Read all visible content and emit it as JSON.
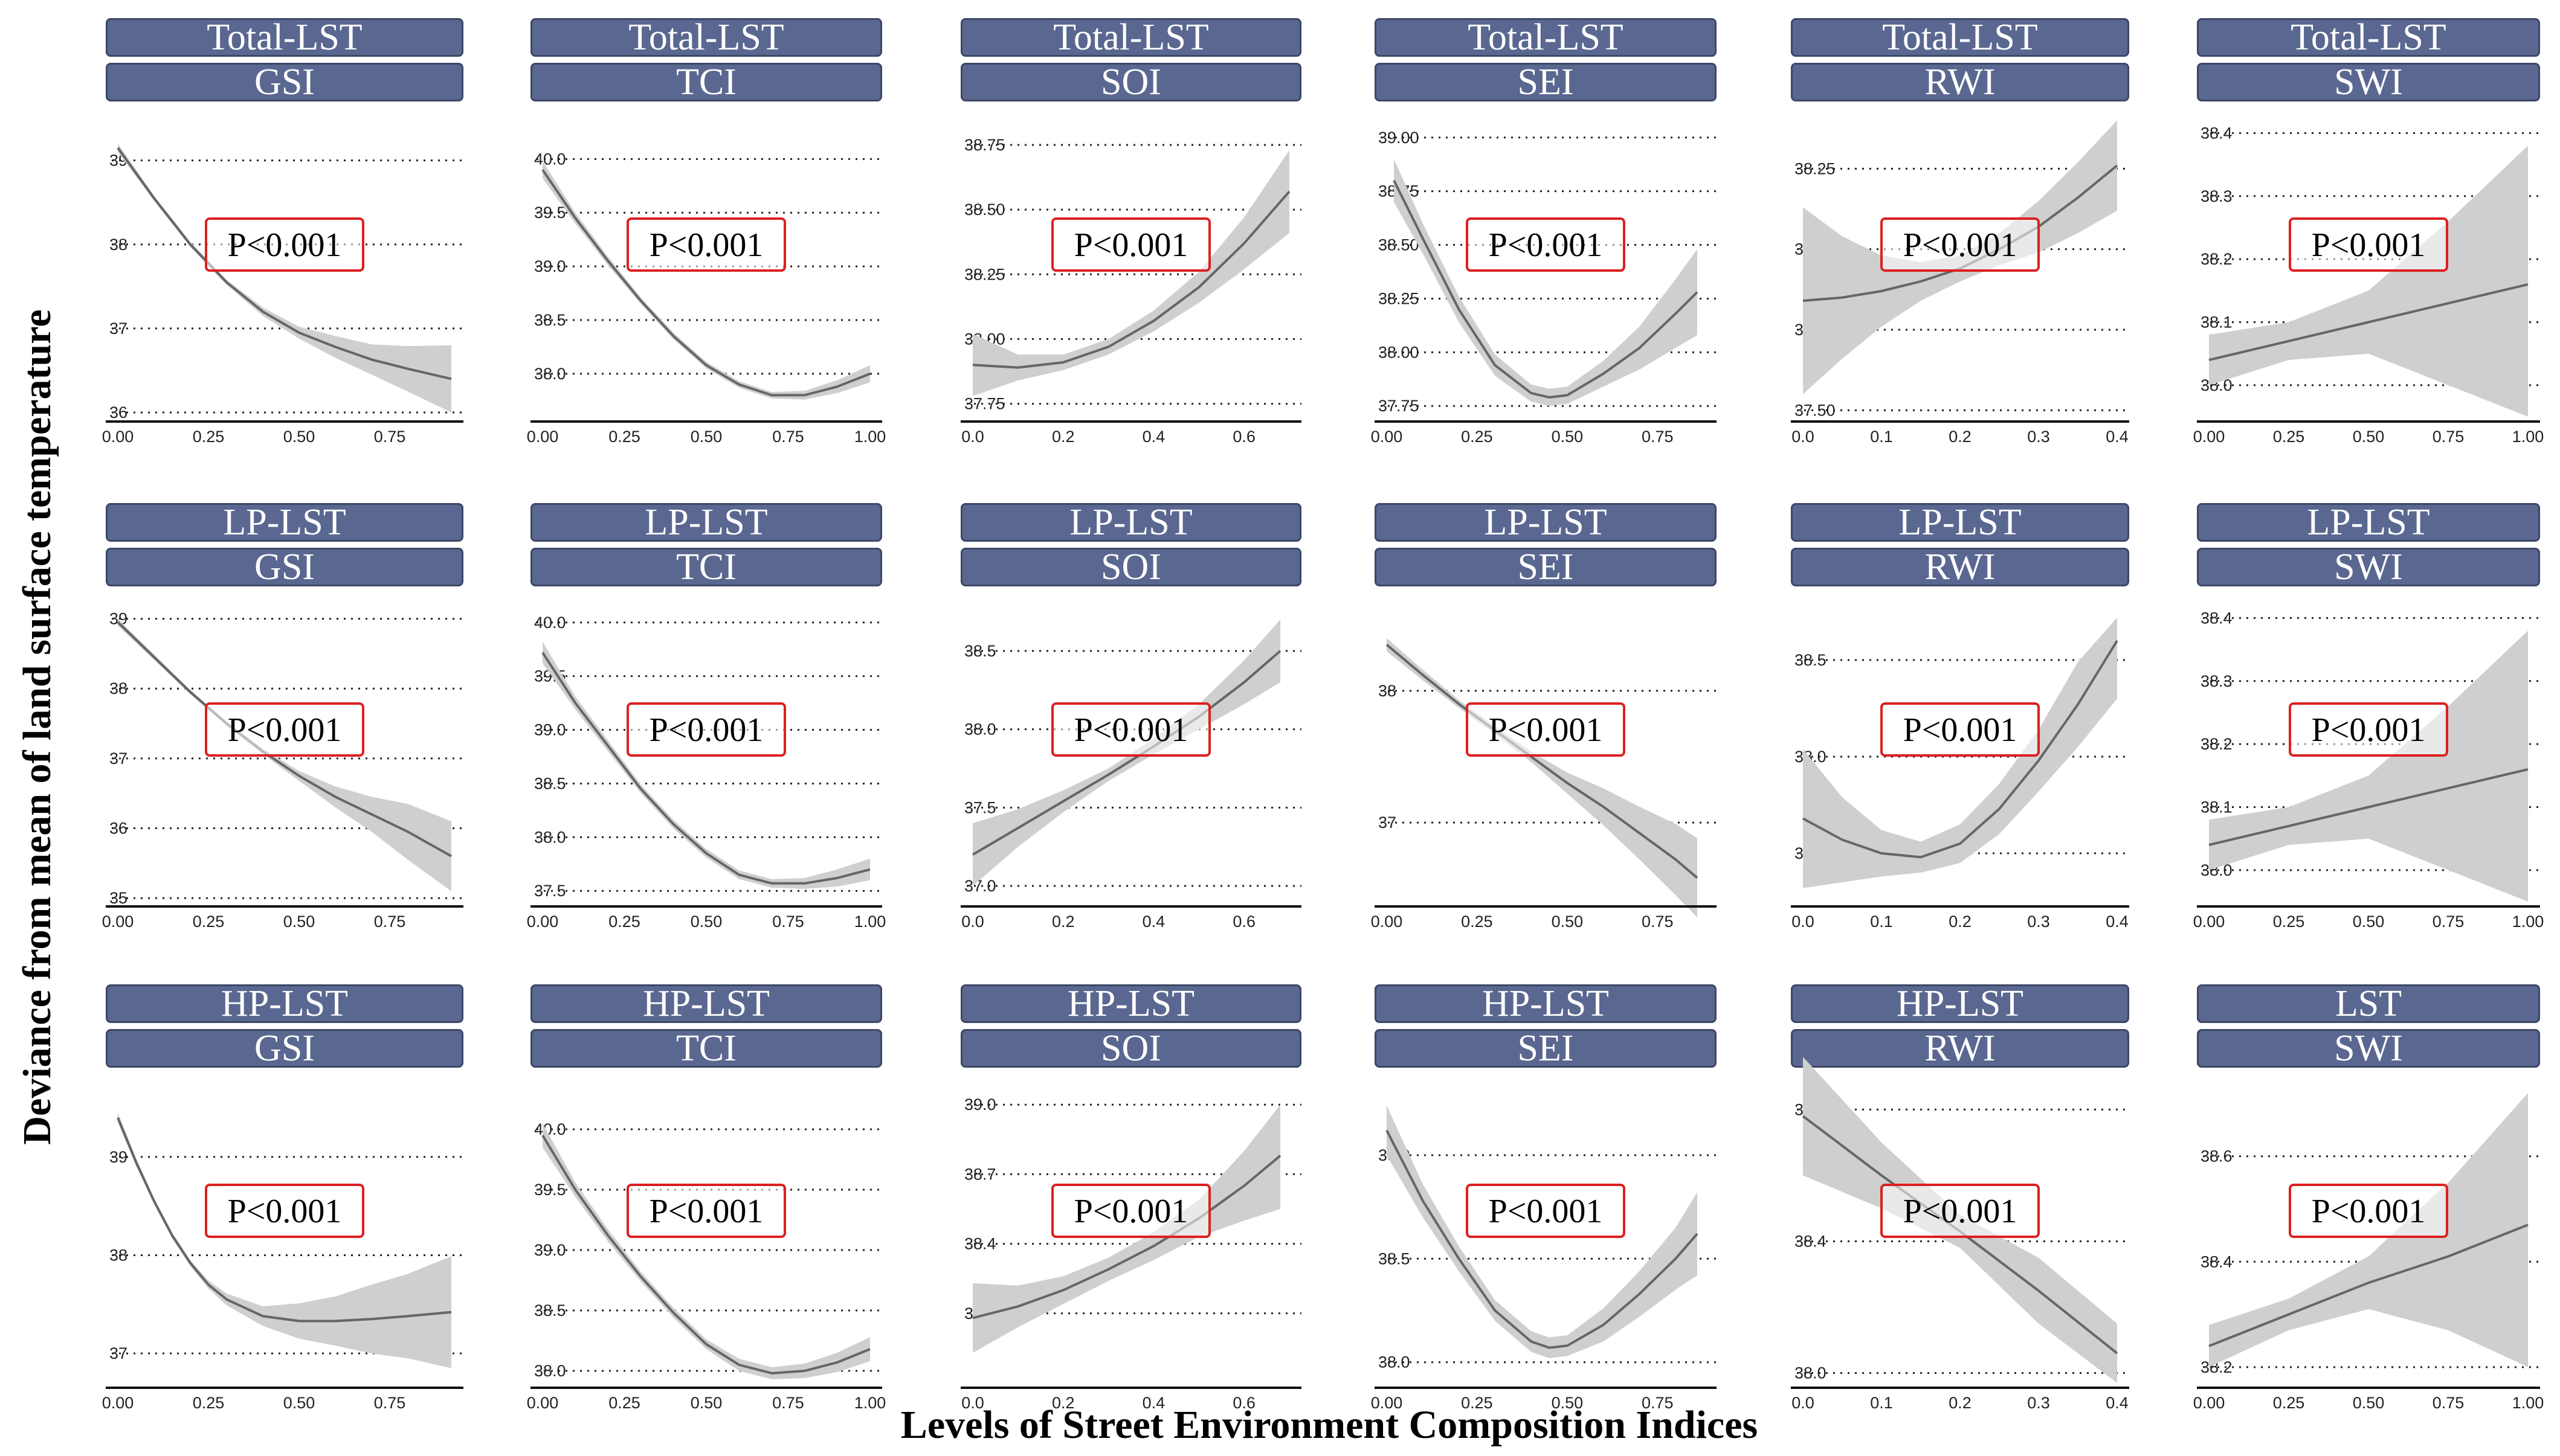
{
  "figure": {
    "ylabel": "Deviance from mean of land surface temperature",
    "xlabel": "Levels of Street Environment Composition Indices",
    "colors": {
      "strip": "#5a6790",
      "ribbon": "#cfcfcf",
      "line": "#666666",
      "pbox": "#dc2020"
    }
  },
  "chart_data": [
    {
      "type": "line",
      "title": "Total-LST",
      "subtitle": "GSI",
      "annotation": "P<0.001",
      "xlim": [
        0,
        0.92
      ],
      "xticks": [
        "0.00",
        "0.25",
        "0.50",
        "0.75"
      ],
      "ylim": [
        35.95,
        39.4
      ],
      "yticks": [
        "36",
        "37",
        "38",
        "39"
      ],
      "x": [
        0,
        0.1,
        0.2,
        0.3,
        0.4,
        0.5,
        0.6,
        0.7,
        0.8,
        0.92
      ],
      "y": [
        39.15,
        38.55,
        38.0,
        37.55,
        37.2,
        36.95,
        36.78,
        36.63,
        36.52,
        36.4
      ],
      "lower": [
        39.1,
        38.52,
        37.97,
        37.52,
        37.15,
        36.88,
        36.65,
        36.45,
        36.25,
        36.0
      ],
      "upper": [
        39.2,
        38.58,
        38.03,
        37.58,
        37.25,
        37.02,
        36.91,
        36.81,
        36.79,
        36.8
      ]
    },
    {
      "type": "line",
      "title": "Total-LST",
      "subtitle": "TCI",
      "annotation": "P<0.001",
      "xlim": [
        0,
        1.0
      ],
      "xticks": [
        "0.00",
        "0.25",
        "0.50",
        "0.75",
        "1.00"
      ],
      "ylim": [
        37.6,
        40.3
      ],
      "yticks": [
        "38.0",
        "38.5",
        "39.0",
        "39.5",
        "40.0"
      ],
      "x": [
        0,
        0.1,
        0.2,
        0.3,
        0.4,
        0.5,
        0.6,
        0.7,
        0.8,
        0.9,
        1.0
      ],
      "y": [
        39.9,
        39.45,
        39.05,
        38.68,
        38.35,
        38.08,
        37.9,
        37.8,
        37.8,
        37.88,
        38.0
      ],
      "lower": [
        39.82,
        39.4,
        39.01,
        38.65,
        38.32,
        38.05,
        37.87,
        37.77,
        37.76,
        37.82,
        37.92
      ],
      "upper": [
        39.98,
        39.5,
        39.09,
        38.71,
        38.38,
        38.11,
        37.93,
        37.83,
        37.84,
        37.94,
        38.08
      ]
    },
    {
      "type": "line",
      "title": "Total-LST",
      "subtitle": "SOI",
      "annotation": "P<0.001",
      "xlim": [
        0,
        0.7
      ],
      "xticks": [
        "0.0",
        "0.2",
        "0.4",
        "0.6"
      ],
      "ylim": [
        37.7,
        38.82
      ],
      "yticks": [
        "37.75",
        "38.00",
        "38.25",
        "38.50",
        "38.75"
      ],
      "x": [
        0,
        0.1,
        0.2,
        0.3,
        0.4,
        0.5,
        0.6,
        0.7
      ],
      "y": [
        37.9,
        37.89,
        37.91,
        37.97,
        38.07,
        38.2,
        38.37,
        38.57
      ],
      "lower": [
        37.78,
        37.84,
        37.88,
        37.94,
        38.03,
        38.14,
        38.27,
        38.41
      ],
      "upper": [
        38.02,
        37.94,
        37.94,
        38.0,
        38.11,
        38.26,
        38.47,
        38.73
      ]
    },
    {
      "type": "line",
      "title": "Total-LST",
      "subtitle": "SEI",
      "annotation": "P<0.001",
      "xlim": [
        0,
        0.88
      ],
      "xticks": [
        "0.00",
        "0.25",
        "0.50",
        "0.75"
      ],
      "ylim": [
        37.7,
        39.05
      ],
      "yticks": [
        "37.75",
        "38.00",
        "38.25",
        "38.50",
        "38.75",
        "39.00"
      ],
      "x": [
        0.02,
        0.1,
        0.2,
        0.3,
        0.4,
        0.45,
        0.5,
        0.6,
        0.7,
        0.8,
        0.86
      ],
      "y": [
        38.8,
        38.53,
        38.2,
        37.94,
        37.81,
        37.79,
        37.8,
        37.9,
        38.02,
        38.18,
        38.28
      ],
      "lower": [
        38.7,
        38.46,
        38.14,
        37.89,
        37.77,
        37.75,
        37.76,
        37.84,
        37.92,
        38.02,
        38.08
      ],
      "upper": [
        38.9,
        38.6,
        38.26,
        37.99,
        37.85,
        37.83,
        37.84,
        37.96,
        38.12,
        38.34,
        38.48
      ]
    },
    {
      "type": "line",
      "title": "Total-LST",
      "subtitle": "RWI",
      "annotation": "P<0.001",
      "xlim": [
        0,
        0.4
      ],
      "xticks": [
        "0.0",
        "0.1",
        "0.2",
        "0.3",
        "0.4"
      ],
      "ylim": [
        37.48,
        38.38
      ],
      "yticks": [
        "37.50",
        "37.75",
        "38.00",
        "38.25"
      ],
      "x": [
        0,
        0.05,
        0.1,
        0.15,
        0.2,
        0.25,
        0.3,
        0.35,
        0.4
      ],
      "y": [
        37.84,
        37.85,
        37.87,
        37.9,
        37.94,
        38.0,
        38.07,
        38.16,
        38.26
      ],
      "lower": [
        37.55,
        37.66,
        37.76,
        37.84,
        37.9,
        37.95,
        37.99,
        38.05,
        38.12
      ],
      "upper": [
        38.13,
        38.04,
        37.98,
        37.96,
        37.98,
        38.05,
        38.15,
        38.27,
        38.4
      ]
    },
    {
      "type": "line",
      "title": "Total-LST",
      "subtitle": "SWI",
      "annotation": "P<0.001",
      "xlim": [
        0,
        1.0
      ],
      "xticks": [
        "0.00",
        "0.25",
        "0.50",
        "0.75",
        "1.00"
      ],
      "ylim": [
        37.95,
        38.41
      ],
      "yticks": [
        "38.0",
        "38.1",
        "38.2",
        "38.3",
        "38.4"
      ],
      "x": [
        0,
        0.25,
        0.5,
        0.75,
        1.0
      ],
      "y": [
        38.04,
        38.07,
        38.1,
        38.13,
        38.16
      ],
      "lower": [
        38.0,
        38.04,
        38.05,
        38.0,
        37.95
      ],
      "upper": [
        38.08,
        38.1,
        38.15,
        38.26,
        38.38
      ]
    },
    {
      "type": "line",
      "title": "LP-LST",
      "subtitle": "GSI",
      "annotation": "P<0.001",
      "xlim": [
        0,
        0.92
      ],
      "xticks": [
        "0.00",
        "0.25",
        "0.50",
        "0.75"
      ],
      "ylim": [
        34.95,
        39.1
      ],
      "yticks": [
        "35",
        "36",
        "37",
        "38",
        "39"
      ],
      "x": [
        0,
        0.1,
        0.2,
        0.3,
        0.4,
        0.5,
        0.6,
        0.7,
        0.8,
        0.92
      ],
      "y": [
        38.95,
        38.45,
        37.95,
        37.5,
        37.1,
        36.75,
        36.45,
        36.2,
        35.95,
        35.6
      ],
      "lower": [
        38.9,
        38.41,
        37.92,
        37.47,
        37.06,
        36.68,
        36.3,
        35.95,
        35.55,
        35.1
      ],
      "upper": [
        39.0,
        38.49,
        37.98,
        37.53,
        37.14,
        36.82,
        36.6,
        36.45,
        36.35,
        36.1
      ]
    },
    {
      "type": "line",
      "title": "LP-LST",
      "subtitle": "TCI",
      "annotation": "P<0.001",
      "xlim": [
        0,
        1.0
      ],
      "xticks": [
        "0.00",
        "0.25",
        "0.50",
        "0.75",
        "1.00"
      ],
      "ylim": [
        37.4,
        40.1
      ],
      "yticks": [
        "37.5",
        "38.0",
        "38.5",
        "39.0",
        "39.5",
        "40.0"
      ],
      "x": [
        0,
        0.1,
        0.2,
        0.3,
        0.4,
        0.5,
        0.6,
        0.7,
        0.8,
        0.9,
        1.0
      ],
      "y": [
        39.72,
        39.25,
        38.85,
        38.45,
        38.12,
        37.85,
        37.65,
        37.57,
        37.57,
        37.62,
        37.7
      ],
      "lower": [
        39.62,
        39.19,
        38.8,
        38.41,
        38.08,
        37.81,
        37.61,
        37.53,
        37.52,
        37.54,
        37.6
      ],
      "upper": [
        39.82,
        39.31,
        38.9,
        38.49,
        38.16,
        37.89,
        37.69,
        37.61,
        37.62,
        37.7,
        37.8
      ]
    },
    {
      "type": "line",
      "title": "LP-LST",
      "subtitle": "SOI",
      "annotation": "P<0.001",
      "xlim": [
        0,
        0.7
      ],
      "xticks": [
        "0.0",
        "0.2",
        "0.4",
        "0.6"
      ],
      "ylim": [
        36.9,
        38.75
      ],
      "yticks": [
        "37.0",
        "37.5",
        "38.0",
        "38.5"
      ],
      "x": [
        0,
        0.1,
        0.2,
        0.3,
        0.4,
        0.5,
        0.6,
        0.68
      ],
      "y": [
        37.2,
        37.37,
        37.54,
        37.71,
        37.89,
        38.08,
        38.3,
        38.5
      ],
      "lower": [
        37.0,
        37.25,
        37.47,
        37.67,
        37.84,
        38.0,
        38.16,
        38.3
      ],
      "upper": [
        37.4,
        37.49,
        37.61,
        37.75,
        37.94,
        38.16,
        38.44,
        38.7
      ]
    },
    {
      "type": "line",
      "title": "LP-LST",
      "subtitle": "SEI",
      "annotation": "P<0.001",
      "xlim": [
        0,
        0.88
      ],
      "xticks": [
        "0.00",
        "0.25",
        "0.50",
        "0.75"
      ],
      "ylim": [
        36.4,
        38.6
      ],
      "yticks": [
        "37",
        "38"
      ],
      "x": [
        0,
        0.1,
        0.2,
        0.3,
        0.4,
        0.5,
        0.6,
        0.7,
        0.8,
        0.86
      ],
      "y": [
        38.35,
        38.12,
        37.9,
        37.7,
        37.5,
        37.3,
        37.12,
        36.92,
        36.72,
        36.58
      ],
      "lower": [
        38.3,
        38.08,
        37.87,
        37.67,
        37.46,
        37.22,
        36.98,
        36.72,
        36.45,
        36.28
      ],
      "upper": [
        38.4,
        38.16,
        37.93,
        37.73,
        37.54,
        37.38,
        37.26,
        37.12,
        36.99,
        36.88
      ]
    },
    {
      "type": "line",
      "title": "LP-LST",
      "subtitle": "RWI",
      "annotation": "P<0.001",
      "xlim": [
        0,
        0.4
      ],
      "xticks": [
        "0.0",
        "0.1",
        "0.2",
        "0.3",
        "0.4"
      ],
      "ylim": [
        37.25,
        38.75
      ],
      "yticks": [
        "37.5",
        "38.0",
        "38.5"
      ],
      "x": [
        0,
        0.05,
        0.1,
        0.15,
        0.2,
        0.25,
        0.3,
        0.35,
        0.4
      ],
      "y": [
        37.68,
        37.57,
        37.5,
        37.48,
        37.55,
        37.73,
        37.98,
        38.27,
        38.6
      ],
      "lower": [
        37.32,
        37.35,
        37.38,
        37.4,
        37.45,
        37.6,
        37.82,
        38.05,
        38.3
      ],
      "upper": [
        38.04,
        37.79,
        37.62,
        37.56,
        37.65,
        37.86,
        38.14,
        38.49,
        38.72
      ]
    },
    {
      "type": "line",
      "title": "LP-LST",
      "subtitle": "SWI",
      "annotation": "P<0.001",
      "xlim": [
        0,
        1.0
      ],
      "xticks": [
        "0.00",
        "0.25",
        "0.50",
        "0.75",
        "1.00"
      ],
      "ylim": [
        37.95,
        38.41
      ],
      "yticks": [
        "38.0",
        "38.1",
        "38.2",
        "38.3",
        "38.4"
      ],
      "x": [
        0,
        0.25,
        0.5,
        0.75,
        1.0
      ],
      "y": [
        38.04,
        38.07,
        38.1,
        38.13,
        38.16
      ],
      "lower": [
        38.0,
        38.04,
        38.05,
        38.0,
        37.95
      ],
      "upper": [
        38.08,
        38.1,
        38.15,
        38.26,
        38.38
      ]
    },
    {
      "type": "line",
      "title": "HP-LST",
      "subtitle": "GSI",
      "annotation": "P<0.001",
      "xlim": [
        0,
        0.92
      ],
      "xticks": [
        "0.00",
        "0.25",
        "0.50",
        "0.75"
      ],
      "ylim": [
        36.7,
        39.65
      ],
      "yticks": [
        "37",
        "38",
        "39"
      ],
      "x": [
        0,
        0.05,
        0.1,
        0.15,
        0.2,
        0.25,
        0.3,
        0.4,
        0.5,
        0.6,
        0.7,
        0.8,
        0.92
      ],
      "y": [
        39.4,
        38.95,
        38.55,
        38.2,
        37.92,
        37.7,
        37.55,
        37.38,
        37.33,
        37.33,
        37.35,
        37.38,
        37.42
      ],
      "lower": [
        39.35,
        38.91,
        38.52,
        38.17,
        37.89,
        37.66,
        37.49,
        37.28,
        37.15,
        37.08,
        37.0,
        36.95,
        36.85
      ],
      "upper": [
        39.45,
        38.99,
        38.58,
        38.23,
        37.95,
        37.74,
        37.61,
        37.48,
        37.51,
        37.58,
        37.7,
        37.81,
        37.99
      ]
    },
    {
      "type": "line",
      "title": "HP-LST",
      "subtitle": "TCI",
      "annotation": "P<0.001",
      "xlim": [
        0,
        1.0
      ],
      "xticks": [
        "0.00",
        "0.25",
        "0.50",
        "0.75",
        "1.00"
      ],
      "ylim": [
        37.9,
        40.3
      ],
      "yticks": [
        "38.0",
        "38.5",
        "39.0",
        "39.5",
        "40.0"
      ],
      "x": [
        0,
        0.1,
        0.2,
        0.3,
        0.4,
        0.5,
        0.6,
        0.7,
        0.8,
        0.9,
        1.0
      ],
      "y": [
        39.95,
        39.5,
        39.12,
        38.78,
        38.48,
        38.22,
        38.05,
        37.98,
        38.0,
        38.07,
        38.18
      ],
      "lower": [
        39.85,
        39.44,
        39.07,
        38.74,
        38.44,
        38.18,
        38.0,
        37.93,
        37.94,
        37.99,
        38.08
      ],
      "upper": [
        40.05,
        39.56,
        39.17,
        38.82,
        38.52,
        38.26,
        38.1,
        38.03,
        38.06,
        38.15,
        38.28
      ]
    },
    {
      "type": "line",
      "title": "HP-LST",
      "subtitle": "SOI",
      "annotation": "P<0.001",
      "xlim": [
        0,
        0.7
      ],
      "xticks": [
        "0.0",
        "0.2",
        "0.4",
        "0.6"
      ],
      "ylim": [
        37.8,
        39.05
      ],
      "yticks": [
        "38.1",
        "38.4",
        "38.7",
        "39.0"
      ],
      "x": [
        0,
        0.1,
        0.2,
        0.3,
        0.4,
        0.5,
        0.6,
        0.68
      ],
      "y": [
        38.08,
        38.13,
        38.2,
        38.29,
        38.39,
        38.51,
        38.65,
        38.78
      ],
      "lower": [
        37.93,
        38.04,
        38.14,
        38.24,
        38.33,
        38.43,
        38.5,
        38.55
      ],
      "upper": [
        38.23,
        38.22,
        38.26,
        38.34,
        38.45,
        38.59,
        38.8,
        39.0
      ]
    },
    {
      "type": "line",
      "title": "HP-LST",
      "subtitle": "SEI",
      "annotation": "P<0.001",
      "xlim": [
        0,
        0.88
      ],
      "xticks": [
        "0.00",
        "0.25",
        "0.50",
        "0.75"
      ],
      "ylim": [
        37.9,
        39.3
      ],
      "yticks": [
        "38.0",
        "38.5",
        "39.0"
      ],
      "x": [
        0,
        0.1,
        0.2,
        0.3,
        0.4,
        0.45,
        0.5,
        0.6,
        0.7,
        0.8,
        0.86
      ],
      "y": [
        39.12,
        38.78,
        38.5,
        38.25,
        38.1,
        38.07,
        38.08,
        38.18,
        38.33,
        38.5,
        38.62
      ],
      "lower": [
        39.0,
        38.7,
        38.44,
        38.2,
        38.05,
        38.02,
        38.03,
        38.1,
        38.22,
        38.35,
        38.42
      ],
      "upper": [
        39.24,
        38.86,
        38.56,
        38.3,
        38.15,
        38.12,
        38.13,
        38.26,
        38.44,
        38.65,
        38.82
      ]
    },
    {
      "type": "line",
      "title": "HP-LST",
      "subtitle": "RWI",
      "annotation": "P<0.001",
      "xlim": [
        0,
        0.4
      ],
      "xticks": [
        "0.0",
        "0.1",
        "0.2",
        "0.3",
        "0.4"
      ],
      "ylim": [
        37.97,
        38.85
      ],
      "yticks": [
        "38.0",
        "38.4",
        "38.8"
      ],
      "x": [
        0,
        0.1,
        0.2,
        0.3,
        0.4
      ],
      "y": [
        38.78,
        38.6,
        38.43,
        38.25,
        38.06
      ],
      "lower": [
        38.6,
        38.5,
        38.38,
        38.15,
        37.97
      ],
      "upper": [
        38.96,
        38.7,
        38.48,
        38.35,
        38.15
      ]
    },
    {
      "type": "line",
      "title": "LST",
      "subtitle": "SWI",
      "annotation": "P<0.001",
      "xlim": [
        0,
        1.0
      ],
      "xticks": [
        "0.00",
        "0.25",
        "0.50",
        "0.75",
        "1.00"
      ],
      "ylim": [
        38.17,
        38.72
      ],
      "yticks": [
        "38.2",
        "38.4",
        "38.6"
      ],
      "x": [
        0,
        0.25,
        0.5,
        0.75,
        1.0
      ],
      "y": [
        38.24,
        38.3,
        38.36,
        38.41,
        38.47
      ],
      "lower": [
        38.2,
        38.27,
        38.31,
        38.27,
        38.2
      ],
      "upper": [
        38.28,
        38.33,
        38.41,
        38.55,
        38.72
      ]
    }
  ]
}
